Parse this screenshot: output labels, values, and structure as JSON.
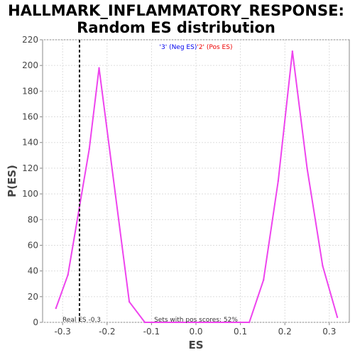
{
  "chart_data": {
    "type": "line",
    "title_line1": "HALLMARK_INFLAMMATORY_RESPONSE:",
    "title_line2": "Random ES distribution",
    "xlabel": "ES",
    "ylabel": "P(ES)",
    "xlim": [
      -0.345,
      0.345
    ],
    "ylim": [
      0,
      220
    ],
    "x_ticks": [
      -0.3,
      -0.2,
      -0.1,
      0.0,
      0.1,
      0.2,
      0.3
    ],
    "x_tick_labels": [
      "-0.3",
      "-0.2",
      "-0.1",
      "0.0",
      "0.1",
      "0.2",
      "0.3"
    ],
    "y_ticks": [
      0,
      20,
      40,
      60,
      80,
      100,
      120,
      140,
      160,
      180,
      200,
      220
    ],
    "y_tick_labels": [
      "0",
      "20",
      "40",
      "60",
      "80",
      "100",
      "120",
      "140",
      "160",
      "180",
      "200",
      "220"
    ],
    "grid": true,
    "series": [
      {
        "color": "#ee44ee",
        "x": [
          -0.315,
          -0.288,
          -0.24,
          -0.218,
          -0.15,
          -0.115,
          0.0,
          0.12,
          0.152,
          0.185,
          0.217,
          0.25,
          0.285,
          0.318
        ],
        "y": [
          11,
          37,
          135,
          198,
          16,
          0,
          0,
          0,
          33,
          110,
          211,
          120,
          44,
          4
        ]
      }
    ],
    "real_es": {
      "value": -0.262,
      "label": "Real ES -0.3"
    },
    "legend": {
      "neg_label": "'3' (Neg ES)",
      "pos_label": "'2' (Pos ES)",
      "neg_color": "#0000ee",
      "pos_color": "#ee0000",
      "placement": "top"
    },
    "annotation": "Sets with pos scores: 52%"
  }
}
